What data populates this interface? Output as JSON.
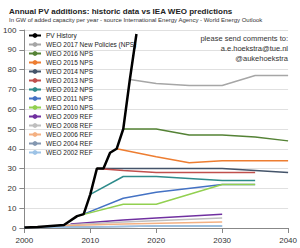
{
  "chart_data": {
    "type": "line",
    "title": "Annual PV additions: historic data vs IEA WEO predictions",
    "subtitle": "In GW of added capacity per year - source International Energy Agency - World Energy Outlook",
    "annotations": [
      "please send comments to:",
      "a.e.hoekstra@tue.nl",
      "@aukehoekstra"
    ],
    "series": [
      {
        "name": "PV History",
        "color": "#000000",
        "x": [
          2000,
          2002,
          2004,
          2006,
          2008,
          2009,
          2010,
          2011,
          2012,
          2013,
          2014,
          2015,
          2016,
          2017
        ],
        "values": [
          0.3,
          0.5,
          1,
          1.5,
          6,
          7,
          17,
          30,
          30,
          38,
          40,
          50,
          75,
          98
        ]
      },
      {
        "name": "WEO 2017 New Policies (NPS)",
        "color": "#a6a6a6",
        "x": [
          2016,
          2020,
          2025,
          2030,
          2035,
          2040
        ],
        "values": [
          75,
          73,
          72,
          72,
          77,
          77
        ]
      },
      {
        "name": "WEO 2016 NPS",
        "color": "#548235",
        "x": [
          2015,
          2020,
          2025,
          2030,
          2035,
          2040
        ],
        "values": [
          50,
          50,
          47,
          47,
          46,
          44
        ]
      },
      {
        "name": "WEO 2015 NPS",
        "color": "#ed7d31",
        "x": [
          2014,
          2020,
          2025,
          2030,
          2035,
          2040
        ],
        "values": [
          40,
          36,
          33,
          34,
          34,
          34
        ]
      },
      {
        "name": "WEO 2014 NPS",
        "color": "#44546a",
        "x": [
          2012,
          2020,
          2030,
          2035,
          2040
        ],
        "values": [
          30,
          30,
          30,
          29,
          28
        ]
      },
      {
        "name": "WEO 2013 NPS",
        "color": "#c0504d",
        "x": [
          2011,
          2015,
          2020,
          2030,
          2035
        ],
        "values": [
          30,
          29,
          28,
          28,
          28
        ]
      },
      {
        "name": "WEO 2012 NPS",
        "color": "#2e8b8b",
        "x": [
          2010,
          2015,
          2020,
          2030,
          2035
        ],
        "values": [
          17,
          26,
          26,
          24,
          24
        ]
      },
      {
        "name": "WEO 2011 NPS",
        "color": "#4472c4",
        "x": [
          2009,
          2015,
          2020,
          2030,
          2035
        ],
        "values": [
          7,
          15,
          18,
          22,
          22
        ]
      },
      {
        "name": "WEO 2010 NPS",
        "color": "#92d050",
        "x": [
          2008,
          2015,
          2020,
          2030,
          2035
        ],
        "values": [
          6,
          12,
          12,
          22,
          22
        ]
      },
      {
        "name": "WEO 2009 REF",
        "color": "#7030a0",
        "x": [
          2007,
          2015,
          2020,
          2030
        ],
        "values": [
          2,
          4,
          5,
          7
        ]
      },
      {
        "name": "WEO 2008 REF",
        "color": "#bfbfbf",
        "x": [
          2006,
          2015,
          2030
        ],
        "values": [
          1.5,
          3,
          5
        ]
      },
      {
        "name": "WEO 2006 REF",
        "color": "#f4b183",
        "x": [
          2004,
          2015,
          2030
        ],
        "values": [
          1,
          2,
          3
        ]
      },
      {
        "name": "WEO 2004 REF",
        "color": "#8497b0",
        "x": [
          2002,
          2010,
          2020,
          2030
        ],
        "values": [
          0.5,
          0.5,
          1,
          1
        ]
      },
      {
        "name": "WEO 2002 REF",
        "color": "#9dc3e6",
        "x": [
          2000,
          2010,
          2020,
          2030
        ],
        "values": [
          0.3,
          0.5,
          1,
          1
        ]
      }
    ],
    "xlim": [
      2000,
      2040
    ],
    "xticks": [
      2000,
      2010,
      2020,
      2030,
      2040
    ],
    "ylim": [
      0,
      100
    ],
    "yticks": [
      0,
      10,
      20,
      30,
      40,
      50,
      60,
      70,
      80,
      90,
      100
    ],
    "grid": true,
    "legend": "upper left"
  }
}
